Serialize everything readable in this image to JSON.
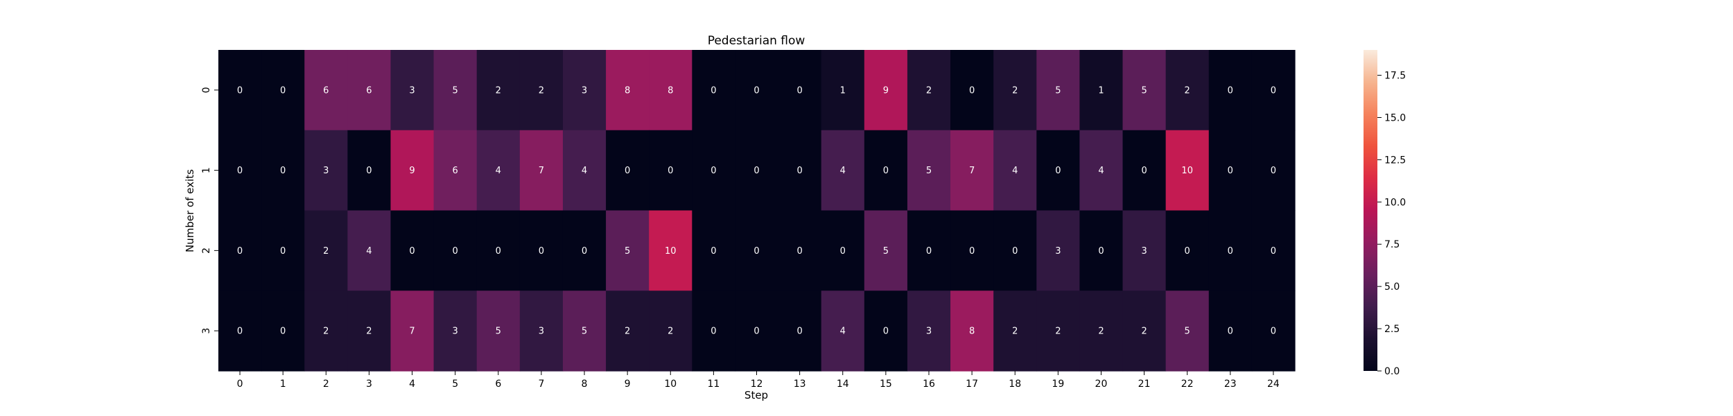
{
  "chart_data": {
    "type": "heatmap",
    "title": "Pedestarian flow",
    "xlabel": "Step",
    "ylabel": "Number of exits",
    "x_categories": [
      "0",
      "1",
      "2",
      "3",
      "4",
      "5",
      "6",
      "7",
      "8",
      "9",
      "10",
      "11",
      "12",
      "13",
      "14",
      "15",
      "16",
      "17",
      "18",
      "19",
      "20",
      "21",
      "22",
      "23",
      "24"
    ],
    "y_categories": [
      "0",
      "1",
      "2",
      "3"
    ],
    "values": [
      [
        0,
        0,
        6,
        6,
        3,
        5,
        2,
        2,
        3,
        8,
        8,
        0,
        0,
        0,
        1,
        9,
        2,
        0,
        2,
        5,
        1,
        5,
        2,
        0,
        0
      ],
      [
        0,
        0,
        3,
        0,
        9,
        6,
        4,
        7,
        4,
        0,
        0,
        0,
        0,
        0,
        4,
        0,
        5,
        7,
        4,
        0,
        4,
        0,
        10,
        0,
        0
      ],
      [
        0,
        0,
        2,
        4,
        0,
        0,
        0,
        0,
        0,
        5,
        10,
        0,
        0,
        0,
        0,
        5,
        0,
        0,
        0,
        3,
        0,
        3,
        0,
        0,
        0
      ],
      [
        0,
        0,
        2,
        2,
        7,
        3,
        5,
        3,
        5,
        2,
        2,
        0,
        0,
        0,
        4,
        0,
        3,
        8,
        2,
        2,
        2,
        2,
        5,
        0,
        0
      ]
    ],
    "annotate": true,
    "colormap": "rocket",
    "colorbar": {
      "vmin": 0,
      "vmax": 19,
      "ticks": [
        "0.0",
        "2.5",
        "5.0",
        "7.5",
        "10.0",
        "12.5",
        "15.0",
        "17.5"
      ],
      "tick_values": [
        0,
        2.5,
        5,
        7.5,
        10,
        12.5,
        15,
        17.5
      ]
    }
  }
}
